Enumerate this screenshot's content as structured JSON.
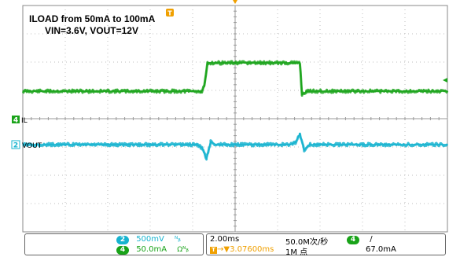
{
  "annotation": {
    "line1": "ILOAD from 50mA to 100mA",
    "line2": "VIN=3.6V, VOUT=12V"
  },
  "markers": {
    "trigger_top": "T",
    "ch4_label": "4",
    "ch4_name": "IL",
    "ch2_label": "2",
    "ch2_name": "VOUT"
  },
  "status": {
    "ch2_badge": "2",
    "ch2_scale": "500mV",
    "ch2_bw": "ᴺᵦ",
    "ch4_badge": "4",
    "ch4_scale": "50.0mA",
    "ch4_bw": "Ωᴺᵦ",
    "timebase": "2.00ms",
    "sample_rate": "50.0M次/秒",
    "trigger_ch": "4",
    "trigger_slope": "/",
    "trigger_offset_icon": "T",
    "trigger_offset": "→▼3.07600ms",
    "record_length": "1M 点",
    "trigger_level": "67.0mA"
  },
  "colors": {
    "ch2": "#16b3cf",
    "ch4": "#19a319",
    "trigger": "#f0a000",
    "grid": "#bdbdbd"
  },
  "chart_data": {
    "type": "line",
    "title": "ILOAD from 50mA to 100mA",
    "subtitle": "VIN=3.6V, VOUT=12V",
    "xlabel": "",
    "ylabel": "",
    "grid": true,
    "x_unit": "ms",
    "x_range": [
      -10,
      10
    ],
    "series": [
      {
        "name": "IL",
        "channel": 4,
        "scale": "50.0mA/div",
        "x": [
          -10,
          -1.7,
          -1.6,
          -1.45,
          -1.3,
          0.0,
          2.8,
          3.05,
          3.15,
          3.4,
          3.8,
          10
        ],
        "y": [
          50,
          50,
          48,
          58,
          100,
          100,
          100,
          100,
          44,
          50,
          50,
          50
        ]
      },
      {
        "name": "VOUT",
        "channel": 2,
        "scale": "500mV/div",
        "coupling": "AC",
        "x": [
          -10,
          -1.8,
          -1.55,
          -1.35,
          -1.15,
          -0.9,
          2.6,
          2.85,
          3.05,
          3.25,
          3.5,
          10
        ],
        "y": [
          0,
          0,
          -0.3,
          -1.25,
          0.25,
          0,
          0,
          0.2,
          1.0,
          -0.5,
          0,
          0
        ]
      }
    ]
  }
}
